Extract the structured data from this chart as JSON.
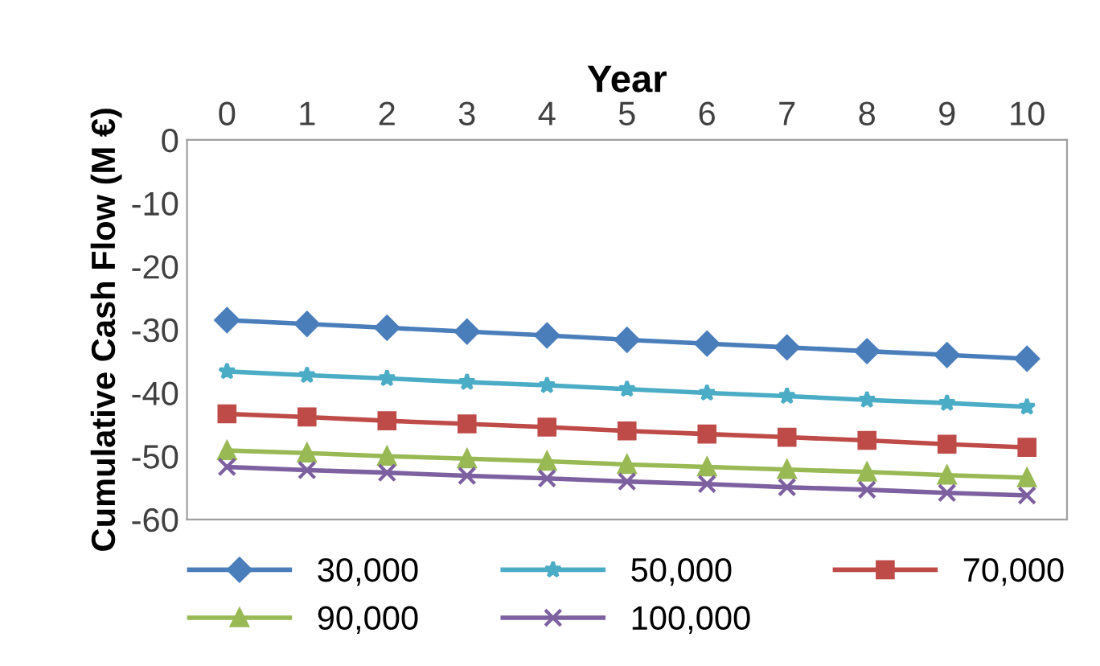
{
  "chart_data": {
    "type": "line",
    "xlabel": "Year",
    "ylabel": "Cumulative Cash Flow (M €)",
    "x": [
      0,
      1,
      2,
      3,
      4,
      5,
      6,
      7,
      8,
      9,
      10
    ],
    "xlim": [
      -0.5,
      10.5
    ],
    "xticks": [
      0,
      1,
      2,
      3,
      4,
      5,
      6,
      7,
      8,
      9,
      10
    ],
    "ylim": [
      -60,
      0
    ],
    "yticks": [
      0,
      -10,
      -20,
      -30,
      -40,
      -50,
      -60
    ],
    "grid": false,
    "legend": "bottom",
    "line_style": "solid",
    "series": [
      {
        "name": "30,000",
        "color": "#4a7ebb",
        "marker": "diamond",
        "values": [
          -28.5,
          -29.1,
          -29.7,
          -30.3,
          -30.9,
          -31.6,
          -32.2,
          -32.8,
          -33.4,
          -34.0,
          -34.6
        ]
      },
      {
        "name": "50,000",
        "color": "#4bacc6",
        "marker": "star",
        "values": [
          -36.6,
          -37.2,
          -37.7,
          -38.3,
          -38.8,
          -39.4,
          -40.0,
          -40.5,
          -41.1,
          -41.6,
          -42.2
        ]
      },
      {
        "name": "70,000",
        "color": "#be4b48",
        "marker": "square",
        "values": [
          -43.3,
          -43.8,
          -44.4,
          -44.9,
          -45.4,
          -46.0,
          -46.5,
          -47.0,
          -47.5,
          -48.1,
          -48.6
        ]
      },
      {
        "name": "90,000",
        "color": "#98b954",
        "marker": "triangle",
        "values": [
          -49.1,
          -49.5,
          -50.0,
          -50.4,
          -50.8,
          -51.3,
          -51.7,
          -52.1,
          -52.5,
          -53.0,
          -53.4
        ]
      },
      {
        "name": "100,000",
        "color": "#7d60a0",
        "marker": "cross",
        "values": [
          -51.7,
          -52.2,
          -52.6,
          -53.1,
          -53.5,
          -54.0,
          -54.4,
          -54.9,
          -55.3,
          -55.8,
          -56.2
        ]
      }
    ]
  }
}
